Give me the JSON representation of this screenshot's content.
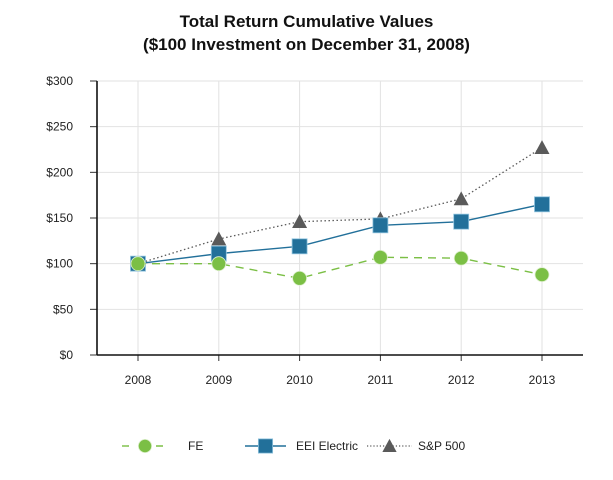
{
  "chart_data": {
    "type": "line",
    "title": "Total Return Cumulative Values",
    "subtitle": "($100 Investment on December 31, 2008)",
    "xlabel": "",
    "ylabel": "",
    "categories": [
      "2008",
      "2009",
      "2010",
      "2011",
      "2012",
      "2013"
    ],
    "ylim": [
      0,
      300
    ],
    "yticks": [
      0,
      50,
      100,
      150,
      200,
      250,
      300
    ],
    "ytick_labels": [
      "$0",
      "$50",
      "$100",
      "$150",
      "$200",
      "$250",
      "$300"
    ],
    "grid": true,
    "legend_position": "bottom",
    "series": [
      {
        "name": "FE",
        "color": "#7bbf45",
        "line_style": "dashed",
        "marker": "circle",
        "values": [
          100,
          100,
          84,
          107,
          106,
          88
        ]
      },
      {
        "name": "EEI Electric",
        "color": "#22709a",
        "line_style": "solid",
        "marker": "square",
        "values": [
          100,
          111,
          119,
          142,
          146,
          165
        ]
      },
      {
        "name": "S&P 500",
        "color": "#5a5a5a",
        "line_style": "dotted",
        "marker": "triangle",
        "values": [
          100,
          127,
          146,
          149,
          171,
          227
        ]
      }
    ]
  }
}
